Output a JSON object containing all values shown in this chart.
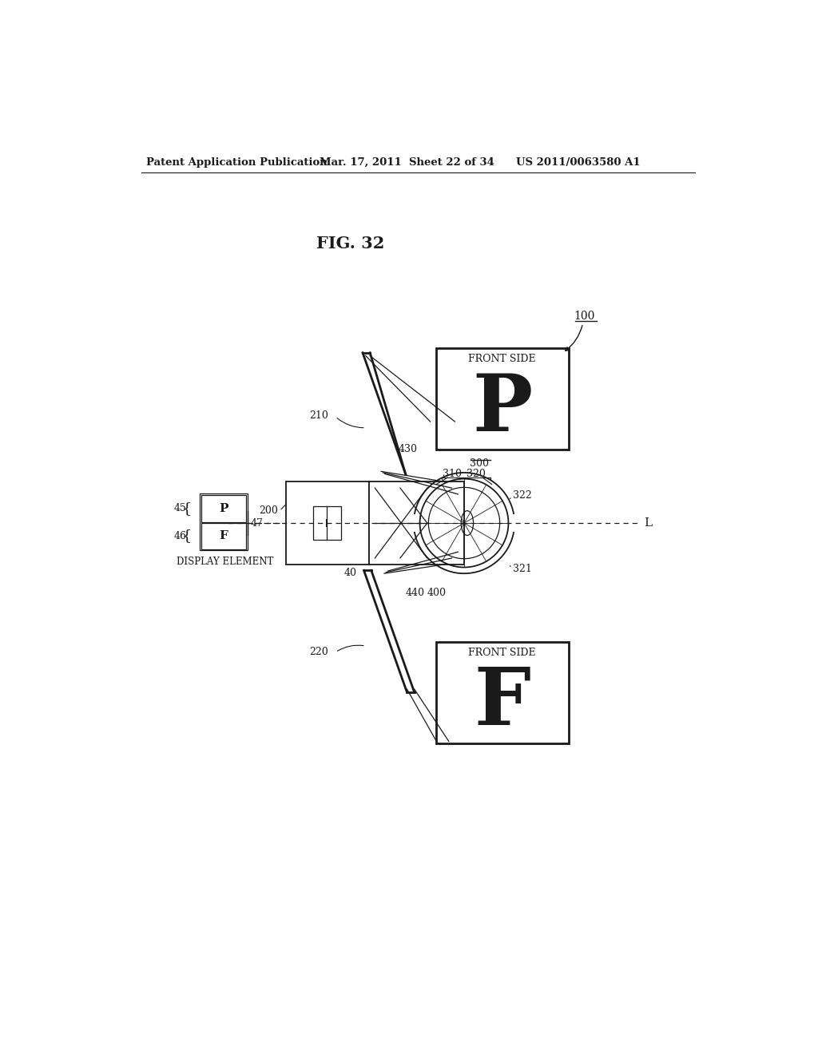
{
  "bg_color": "#ffffff",
  "text_color": "#1a1a1a",
  "header_left": "Patent Application Publication",
  "header_mid": "Mar. 17, 2011  Sheet 22 of 34",
  "header_right": "US 2011/0063580 A1",
  "fig_title": "FIG. 32",
  "label_100": "100",
  "label_200": "200",
  "label_210": "210",
  "label_220": "220",
  "label_40": "40",
  "label_45": "45",
  "label_46": "46",
  "label_47": "47",
  "label_300": "300",
  "label_310": "310",
  "label_320": "320",
  "label_321": "321",
  "label_322": "322",
  "label_400": "400",
  "label_430": "430",
  "label_440": "440",
  "label_L": "L",
  "label_P": "P",
  "label_F": "F",
  "label_display_element": "DISPLAY ELEMENT",
  "label_front_side": "FRONT SIDE"
}
